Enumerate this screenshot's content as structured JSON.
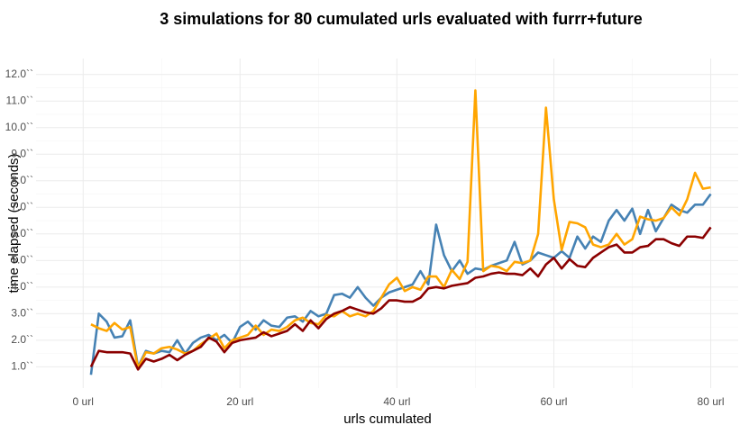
{
  "chart_data": {
    "type": "line",
    "title": "3 simulations for 80 cumulated urls evaluated with furrr+future",
    "x_label": "urls cumulated",
    "y_label": "time elapsed (seconds)",
    "x": [
      1,
      2,
      3,
      4,
      5,
      6,
      7,
      8,
      9,
      10,
      11,
      12,
      13,
      14,
      15,
      16,
      17,
      18,
      19,
      20,
      21,
      22,
      23,
      24,
      25,
      26,
      27,
      28,
      29,
      30,
      31,
      32,
      33,
      34,
      35,
      36,
      37,
      38,
      39,
      40,
      41,
      42,
      43,
      44,
      45,
      46,
      47,
      48,
      49,
      50,
      51,
      52,
      53,
      54,
      55,
      56,
      57,
      58,
      59,
      60,
      61,
      62,
      63,
      64,
      65,
      66,
      67,
      68,
      69,
      70,
      71,
      72,
      73,
      74,
      75,
      76,
      77,
      78,
      79,
      80
    ],
    "series": [
      {
        "color": "#4682b4",
        "values": [
          0.7,
          3.0,
          2.7,
          2.1,
          2.15,
          2.75,
          1.0,
          1.6,
          1.5,
          1.6,
          1.55,
          2.0,
          1.5,
          1.9,
          2.1,
          2.2,
          2.0,
          2.2,
          1.9,
          2.5,
          2.7,
          2.4,
          2.75,
          2.55,
          2.5,
          2.85,
          2.9,
          2.7,
          3.1,
          2.9,
          3.0,
          3.7,
          3.75,
          3.6,
          4.0,
          3.6,
          3.3,
          3.6,
          3.8,
          3.9,
          4.0,
          4.1,
          4.6,
          4.1,
          6.35,
          5.2,
          4.6,
          5.0,
          4.5,
          4.7,
          4.65,
          4.8,
          4.9,
          5.0,
          5.7,
          4.85,
          5.0,
          5.3,
          5.2,
          5.1,
          5.35,
          5.1,
          5.9,
          5.45,
          5.9,
          5.7,
          6.5,
          6.9,
          6.5,
          6.95,
          6.0,
          6.9,
          6.1,
          6.6,
          7.1,
          6.9,
          6.8,
          7.1,
          7.1,
          7.5
        ]
      },
      {
        "color": "#ffa500",
        "values": [
          2.6,
          2.45,
          2.35,
          2.65,
          2.4,
          2.5,
          0.95,
          1.55,
          1.5,
          1.7,
          1.75,
          1.65,
          1.5,
          1.6,
          1.85,
          2.05,
          2.25,
          1.7,
          2.0,
          2.1,
          2.2,
          2.55,
          2.2,
          2.4,
          2.35,
          2.5,
          2.75,
          2.85,
          2.65,
          2.6,
          2.95,
          2.9,
          3.1,
          2.9,
          3.0,
          2.9,
          3.1,
          3.6,
          4.1,
          4.35,
          3.85,
          4.0,
          3.9,
          4.4,
          4.4,
          4.0,
          4.65,
          4.3,
          4.95,
          11.4,
          4.6,
          4.8,
          4.75,
          4.6,
          4.95,
          4.9,
          5.0,
          6.0,
          10.75,
          7.3,
          5.4,
          6.45,
          6.4,
          6.25,
          5.6,
          5.5,
          5.6,
          6.0,
          5.6,
          5.8,
          6.65,
          6.55,
          6.5,
          6.6,
          7.0,
          6.7,
          7.3,
          8.3,
          7.7,
          7.75
        ]
      },
      {
        "color": "#8b0000",
        "values": [
          1.0,
          1.6,
          1.55,
          1.55,
          1.55,
          1.5,
          0.9,
          1.3,
          1.2,
          1.3,
          1.45,
          1.25,
          1.45,
          1.6,
          1.75,
          2.1,
          1.95,
          1.55,
          1.9,
          2.0,
          2.05,
          2.1,
          2.3,
          2.15,
          2.25,
          2.35,
          2.6,
          2.35,
          2.75,
          2.45,
          2.8,
          3.0,
          3.1,
          3.25,
          3.15,
          3.05,
          3.0,
          3.2,
          3.5,
          3.5,
          3.45,
          3.45,
          3.6,
          3.95,
          4.0,
          3.95,
          4.05,
          4.1,
          4.15,
          4.35,
          4.4,
          4.5,
          4.55,
          4.5,
          4.5,
          4.45,
          4.7,
          4.4,
          4.85,
          5.1,
          4.7,
          5.05,
          4.8,
          4.75,
          5.1,
          5.3,
          5.5,
          5.6,
          5.3,
          5.3,
          5.5,
          5.55,
          5.8,
          5.8,
          5.65,
          5.55,
          5.9,
          5.9,
          5.85,
          6.25
        ]
      }
    ],
    "xlim": [
      -6,
      83.5
    ],
    "ylim": [
      0.2,
      12.6
    ],
    "xticks": [
      {
        "value": 0,
        "label": "0 url"
      },
      {
        "value": 20,
        "label": "20 url"
      },
      {
        "value": 40,
        "label": "40 url"
      },
      {
        "value": 60,
        "label": "60 url"
      },
      {
        "value": 80,
        "label": "80 url"
      }
    ],
    "yticks": [
      {
        "value": 1,
        "label": "1.0``"
      },
      {
        "value": 2,
        "label": "2.0``"
      },
      {
        "value": 3,
        "label": "3.0``"
      },
      {
        "value": 4,
        "label": "4.0``"
      },
      {
        "value": 5,
        "label": "5.0``"
      },
      {
        "value": 6,
        "label": "6.0``"
      },
      {
        "value": 7,
        "label": "7.0``"
      },
      {
        "value": 8,
        "label": "8.0``"
      },
      {
        "value": 9,
        "label": "9.0``"
      },
      {
        "value": 10,
        "label": "10.0``"
      },
      {
        "value": 11,
        "label": "11.0``"
      },
      {
        "value": 12,
        "label": "12.0``"
      }
    ],
    "grid": true
  }
}
